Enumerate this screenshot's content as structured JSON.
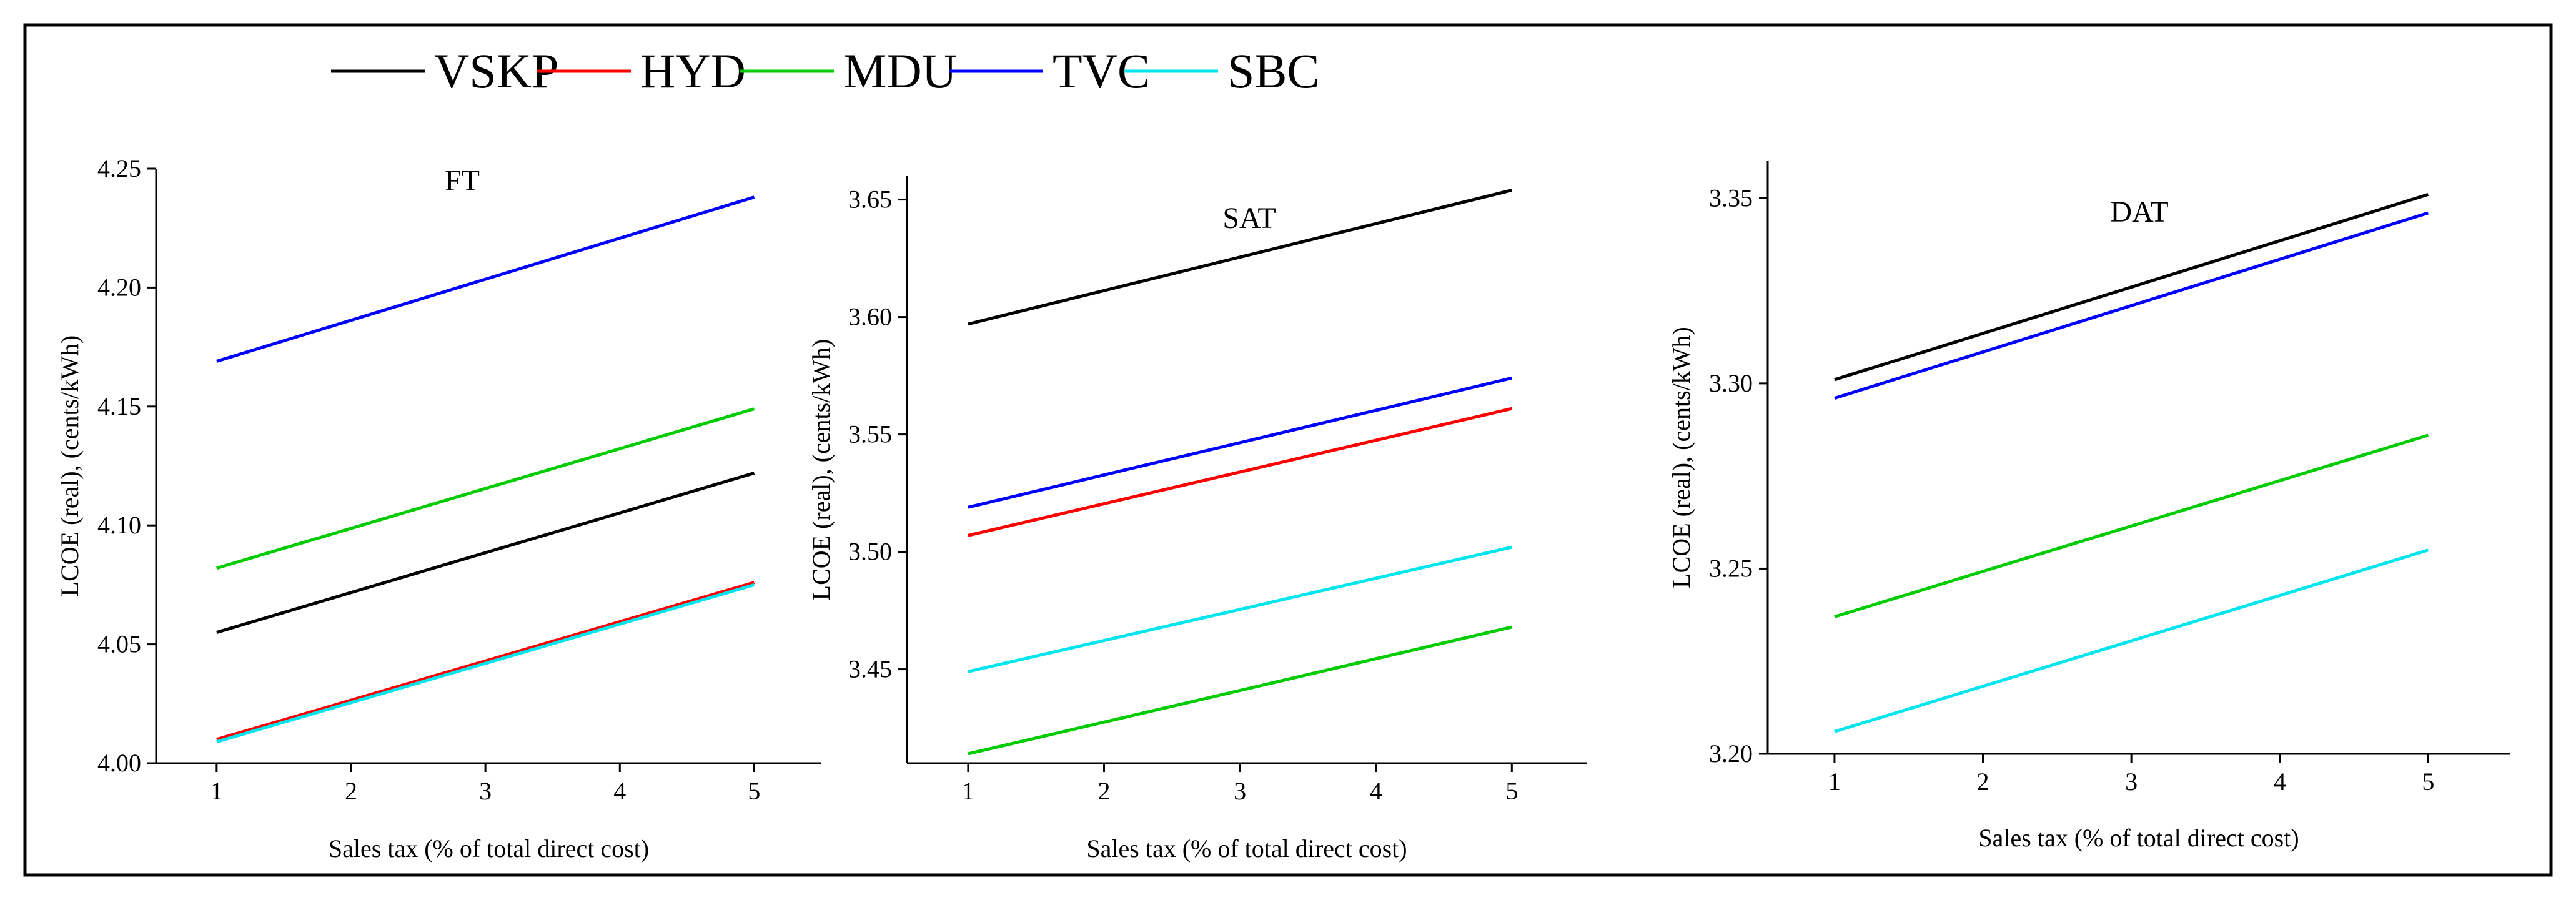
{
  "chart_data": [
    {
      "type": "line",
      "title": "FT",
      "xlabel": "Sales tax (% of total direct cost)",
      "ylabel": "LCOE (real), (cents/kWh)",
      "x": [
        1,
        5
      ],
      "xticks": [
        1,
        2,
        3,
        4,
        5
      ],
      "xlim": [
        0.55,
        5.5
      ],
      "ylim": [
        4.0,
        4.25
      ],
      "yticks": [
        4.0,
        4.05,
        4.1,
        4.15,
        4.2,
        4.25
      ],
      "ytick_labels": [
        "4.00",
        "4.05",
        "4.10",
        "4.15",
        "4.20",
        "4.25"
      ],
      "series": [
        {
          "name": "VSKP",
          "color": "#000000",
          "values": [
            4.055,
            4.122
          ]
        },
        {
          "name": "HYD",
          "color": "#ff0000",
          "values": [
            4.01,
            4.076
          ]
        },
        {
          "name": "MDU",
          "color": "#00cc00",
          "values": [
            4.082,
            4.149
          ]
        },
        {
          "name": "TVC",
          "color": "#0000ff",
          "values": [
            4.169,
            4.238
          ]
        },
        {
          "name": "SBC",
          "color": "#00e5ee",
          "values": [
            4.009,
            4.075
          ]
        }
      ]
    },
    {
      "type": "line",
      "title": "SAT",
      "xlabel": "Sales tax (% of total direct cost)",
      "ylabel": "LCOE (real), (cents/kWh)",
      "x": [
        1,
        5
      ],
      "xticks": [
        1,
        2,
        3,
        4,
        5
      ],
      "xlim": [
        0.55,
        5.55
      ],
      "ylim": [
        3.41,
        3.66
      ],
      "yticks": [
        3.45,
        3.5,
        3.55,
        3.6,
        3.65
      ],
      "ytick_labels": [
        "3.45",
        "3.50",
        "3.55",
        "3.60",
        "3.65"
      ],
      "series": [
        {
          "name": "VSKP",
          "color": "#000000",
          "values": [
            3.597,
            3.654
          ]
        },
        {
          "name": "HYD",
          "color": "#ff0000",
          "values": [
            3.507,
            3.561
          ]
        },
        {
          "name": "MDU",
          "color": "#00cc00",
          "values": [
            3.414,
            3.468
          ]
        },
        {
          "name": "TVC",
          "color": "#0000ff",
          "values": [
            3.519,
            3.574
          ]
        },
        {
          "name": "SBC",
          "color": "#00e5ee",
          "values": [
            3.449,
            3.502
          ]
        }
      ]
    },
    {
      "type": "line",
      "title": "DAT",
      "xlabel": "Sales tax (% of total direct cost)",
      "ylabel": "LCOE (real), (cents/kWh)",
      "x": [
        1,
        5
      ],
      "xticks": [
        1,
        2,
        3,
        4,
        5
      ],
      "xlim": [
        0.55,
        5.55
      ],
      "ylim": [
        3.2,
        3.36
      ],
      "yticks": [
        3.2,
        3.25,
        3.3,
        3.35
      ],
      "ytick_labels": [
        "3.20",
        "3.25",
        "3.30",
        "3.35"
      ],
      "series": [
        {
          "name": "VSKP",
          "color": "#000000",
          "values": [
            3.301,
            3.351
          ]
        },
        {
          "name": "HYD",
          "color": "#ff0000",
          "values": null
        },
        {
          "name": "MDU",
          "color": "#00cc00",
          "values": [
            3.237,
            3.286
          ]
        },
        {
          "name": "TVC",
          "color": "#0000ff",
          "values": [
            3.296,
            3.346
          ]
        },
        {
          "name": "SBC",
          "color": "#00e5ee",
          "values": [
            3.206,
            3.255
          ]
        }
      ]
    }
  ],
  "legend": [
    {
      "name": "VSKP",
      "color": "#000000"
    },
    {
      "name": "HYD",
      "color": "#ff0000"
    },
    {
      "name": "MDU",
      "color": "#00cc00"
    },
    {
      "name": "TVC",
      "color": "#0000ff"
    },
    {
      "name": "SBC",
      "color": "#00e5ee"
    }
  ]
}
